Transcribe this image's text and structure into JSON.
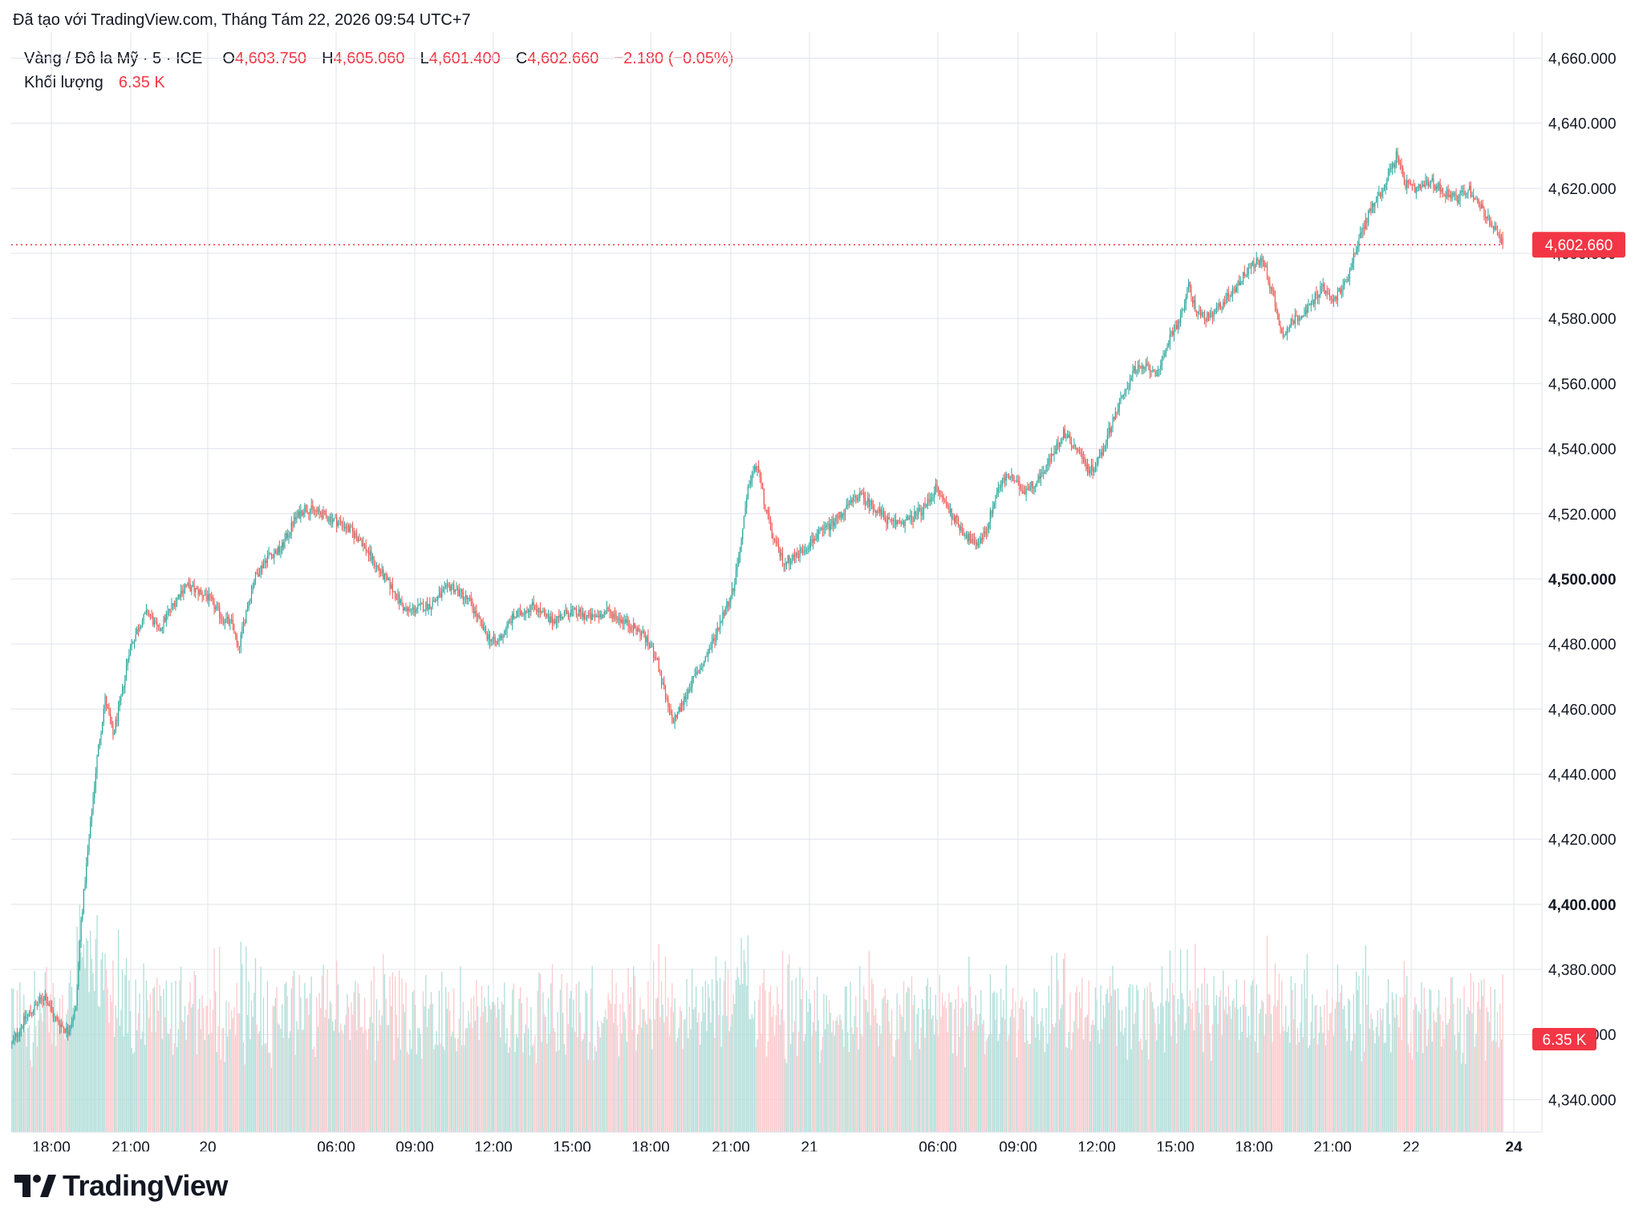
{
  "header": {
    "credit": "Đã tạo với TradingView.com, Tháng Tám 22, 2026 09:54 UTC+7"
  },
  "legend": {
    "symbol": "Vàng / Đô la Mỹ · 5 · ICE",
    "open_label": "O",
    "open": "4,603.750",
    "high_label": "H",
    "high": "4,605.060",
    "low_label": "L",
    "low": "4,601.400",
    "close_label": "C",
    "close": "4,602.660",
    "change": "−2.180 (−0.05%)",
    "volume_label": "Khối lượng",
    "volume": "6.35 K"
  },
  "logo": {
    "text": "TradingView",
    "icon": "tradingview-logo-icon"
  },
  "colors": {
    "up": "#26a69a",
    "down": "#ef5350",
    "up_volume": "#b2dfdb",
    "down_volume": "#fccbcd",
    "grid": "#e0e3eb",
    "price_tag": "#f23645",
    "text": "#131722"
  },
  "chart_data": {
    "type": "candlestick",
    "interval": "5",
    "grid": true,
    "ylim": [
      4330,
      4668
    ],
    "y_ticks": [
      "4,340.000",
      "4,360.000",
      "4,380.000",
      "4,400.000",
      "4,420.000",
      "4,440.000",
      "4,460.000",
      "4,480.000",
      "4,500.000",
      "4,520.000",
      "4,540.000",
      "4,560.000",
      "4,580.000",
      "4,600.000",
      "4,620.000",
      "4,640.000",
      "4,660.000"
    ],
    "y_ticks_bold": [
      "4,400.000",
      "4,500.000"
    ],
    "x_ticks": [
      {
        "label": "18:00",
        "bold": false
      },
      {
        "label": "21:00",
        "bold": false
      },
      {
        "label": "20",
        "bold": false
      },
      {
        "label": "06:00",
        "bold": false
      },
      {
        "label": "09:00",
        "bold": false
      },
      {
        "label": "12:00",
        "bold": false
      },
      {
        "label": "15:00",
        "bold": false
      },
      {
        "label": "18:00",
        "bold": false
      },
      {
        "label": "21:00",
        "bold": false
      },
      {
        "label": "21",
        "bold": false
      },
      {
        "label": "06:00",
        "bold": false
      },
      {
        "label": "09:00",
        "bold": false
      },
      {
        "label": "12:00",
        "bold": false
      },
      {
        "label": "15:00",
        "bold": false
      },
      {
        "label": "18:00",
        "bold": false
      },
      {
        "label": "21:00",
        "bold": false
      },
      {
        "label": "22",
        "bold": false
      },
      {
        "label": "24",
        "bold": true
      }
    ],
    "last_price": 4602.66,
    "last_price_label": "4,602.660",
    "last_volume_label": "6.35 K",
    "price_path": [
      [
        0,
        4357
      ],
      [
        10,
        4365
      ],
      [
        25,
        4372
      ],
      [
        32,
        4365
      ],
      [
        42,
        4361
      ],
      [
        48,
        4368
      ],
      [
        52,
        4395
      ],
      [
        58,
        4420
      ],
      [
        64,
        4445
      ],
      [
        70,
        4463
      ],
      [
        76,
        4452
      ],
      [
        82,
        4463
      ],
      [
        88,
        4478
      ],
      [
        96,
        4486
      ],
      [
        102,
        4490
      ],
      [
        110,
        4484
      ],
      [
        122,
        4493
      ],
      [
        130,
        4498
      ],
      [
        146,
        4495
      ],
      [
        158,
        4488
      ],
      [
        166,
        4486
      ],
      [
        170,
        4478
      ],
      [
        176,
        4490
      ],
      [
        182,
        4500
      ],
      [
        192,
        4507
      ],
      [
        202,
        4509
      ],
      [
        212,
        4518
      ],
      [
        220,
        4522
      ],
      [
        232,
        4520
      ],
      [
        248,
        4517
      ],
      [
        262,
        4512
      ],
      [
        272,
        4505
      ],
      [
        284,
        4498
      ],
      [
        296,
        4490
      ],
      [
        314,
        4492
      ],
      [
        330,
        4498
      ],
      [
        344,
        4493
      ],
      [
        356,
        4483
      ],
      [
        364,
        4480
      ],
      [
        376,
        4488
      ],
      [
        392,
        4492
      ],
      [
        404,
        4487
      ],
      [
        420,
        4490
      ],
      [
        436,
        4488
      ],
      [
        448,
        4490
      ],
      [
        460,
        4487
      ],
      [
        474,
        4483
      ],
      [
        484,
        4476
      ],
      [
        490,
        4465
      ],
      [
        496,
        4456
      ],
      [
        502,
        4460
      ],
      [
        510,
        4468
      ],
      [
        518,
        4473
      ],
      [
        526,
        4480
      ],
      [
        534,
        4489
      ],
      [
        542,
        4497
      ],
      [
        548,
        4512
      ],
      [
        554,
        4530
      ],
      [
        560,
        4535
      ],
      [
        566,
        4522
      ],
      [
        572,
        4512
      ],
      [
        580,
        4505
      ],
      [
        592,
        4508
      ],
      [
        604,
        4513
      ],
      [
        616,
        4517
      ],
      [
        628,
        4522
      ],
      [
        636,
        4526
      ],
      [
        648,
        4522
      ],
      [
        660,
        4517
      ],
      [
        674,
        4518
      ],
      [
        686,
        4522
      ],
      [
        694,
        4528
      ],
      [
        706,
        4520
      ],
      [
        714,
        4515
      ],
      [
        724,
        4510
      ],
      [
        732,
        4515
      ],
      [
        740,
        4527
      ],
      [
        748,
        4532
      ],
      [
        760,
        4527
      ],
      [
        770,
        4530
      ],
      [
        782,
        4538
      ],
      [
        790,
        4545
      ],
      [
        800,
        4540
      ],
      [
        810,
        4533
      ],
      [
        818,
        4538
      ],
      [
        828,
        4550
      ],
      [
        836,
        4557
      ],
      [
        842,
        4564
      ],
      [
        854,
        4565
      ],
      [
        862,
        4563
      ],
      [
        870,
        4575
      ],
      [
        878,
        4580
      ],
      [
        884,
        4590
      ],
      [
        890,
        4582
      ],
      [
        900,
        4580
      ],
      [
        910,
        4585
      ],
      [
        920,
        4590
      ],
      [
        930,
        4596
      ],
      [
        940,
        4598
      ],
      [
        948,
        4586
      ],
      [
        954,
        4575
      ],
      [
        964,
        4580
      ],
      [
        974,
        4583
      ],
      [
        984,
        4590
      ],
      [
        992,
        4585
      ],
      [
        1002,
        4591
      ],
      [
        1010,
        4602
      ],
      [
        1020,
        4613
      ],
      [
        1030,
        4620
      ],
      [
        1040,
        4630
      ],
      [
        1046,
        4622
      ],
      [
        1054,
        4619
      ],
      [
        1066,
        4622
      ],
      [
        1076,
        4619
      ],
      [
        1086,
        4617
      ],
      [
        1094,
        4620
      ],
      [
        1104,
        4614
      ],
      [
        1114,
        4607
      ],
      [
        1120,
        4602.66
      ]
    ]
  }
}
